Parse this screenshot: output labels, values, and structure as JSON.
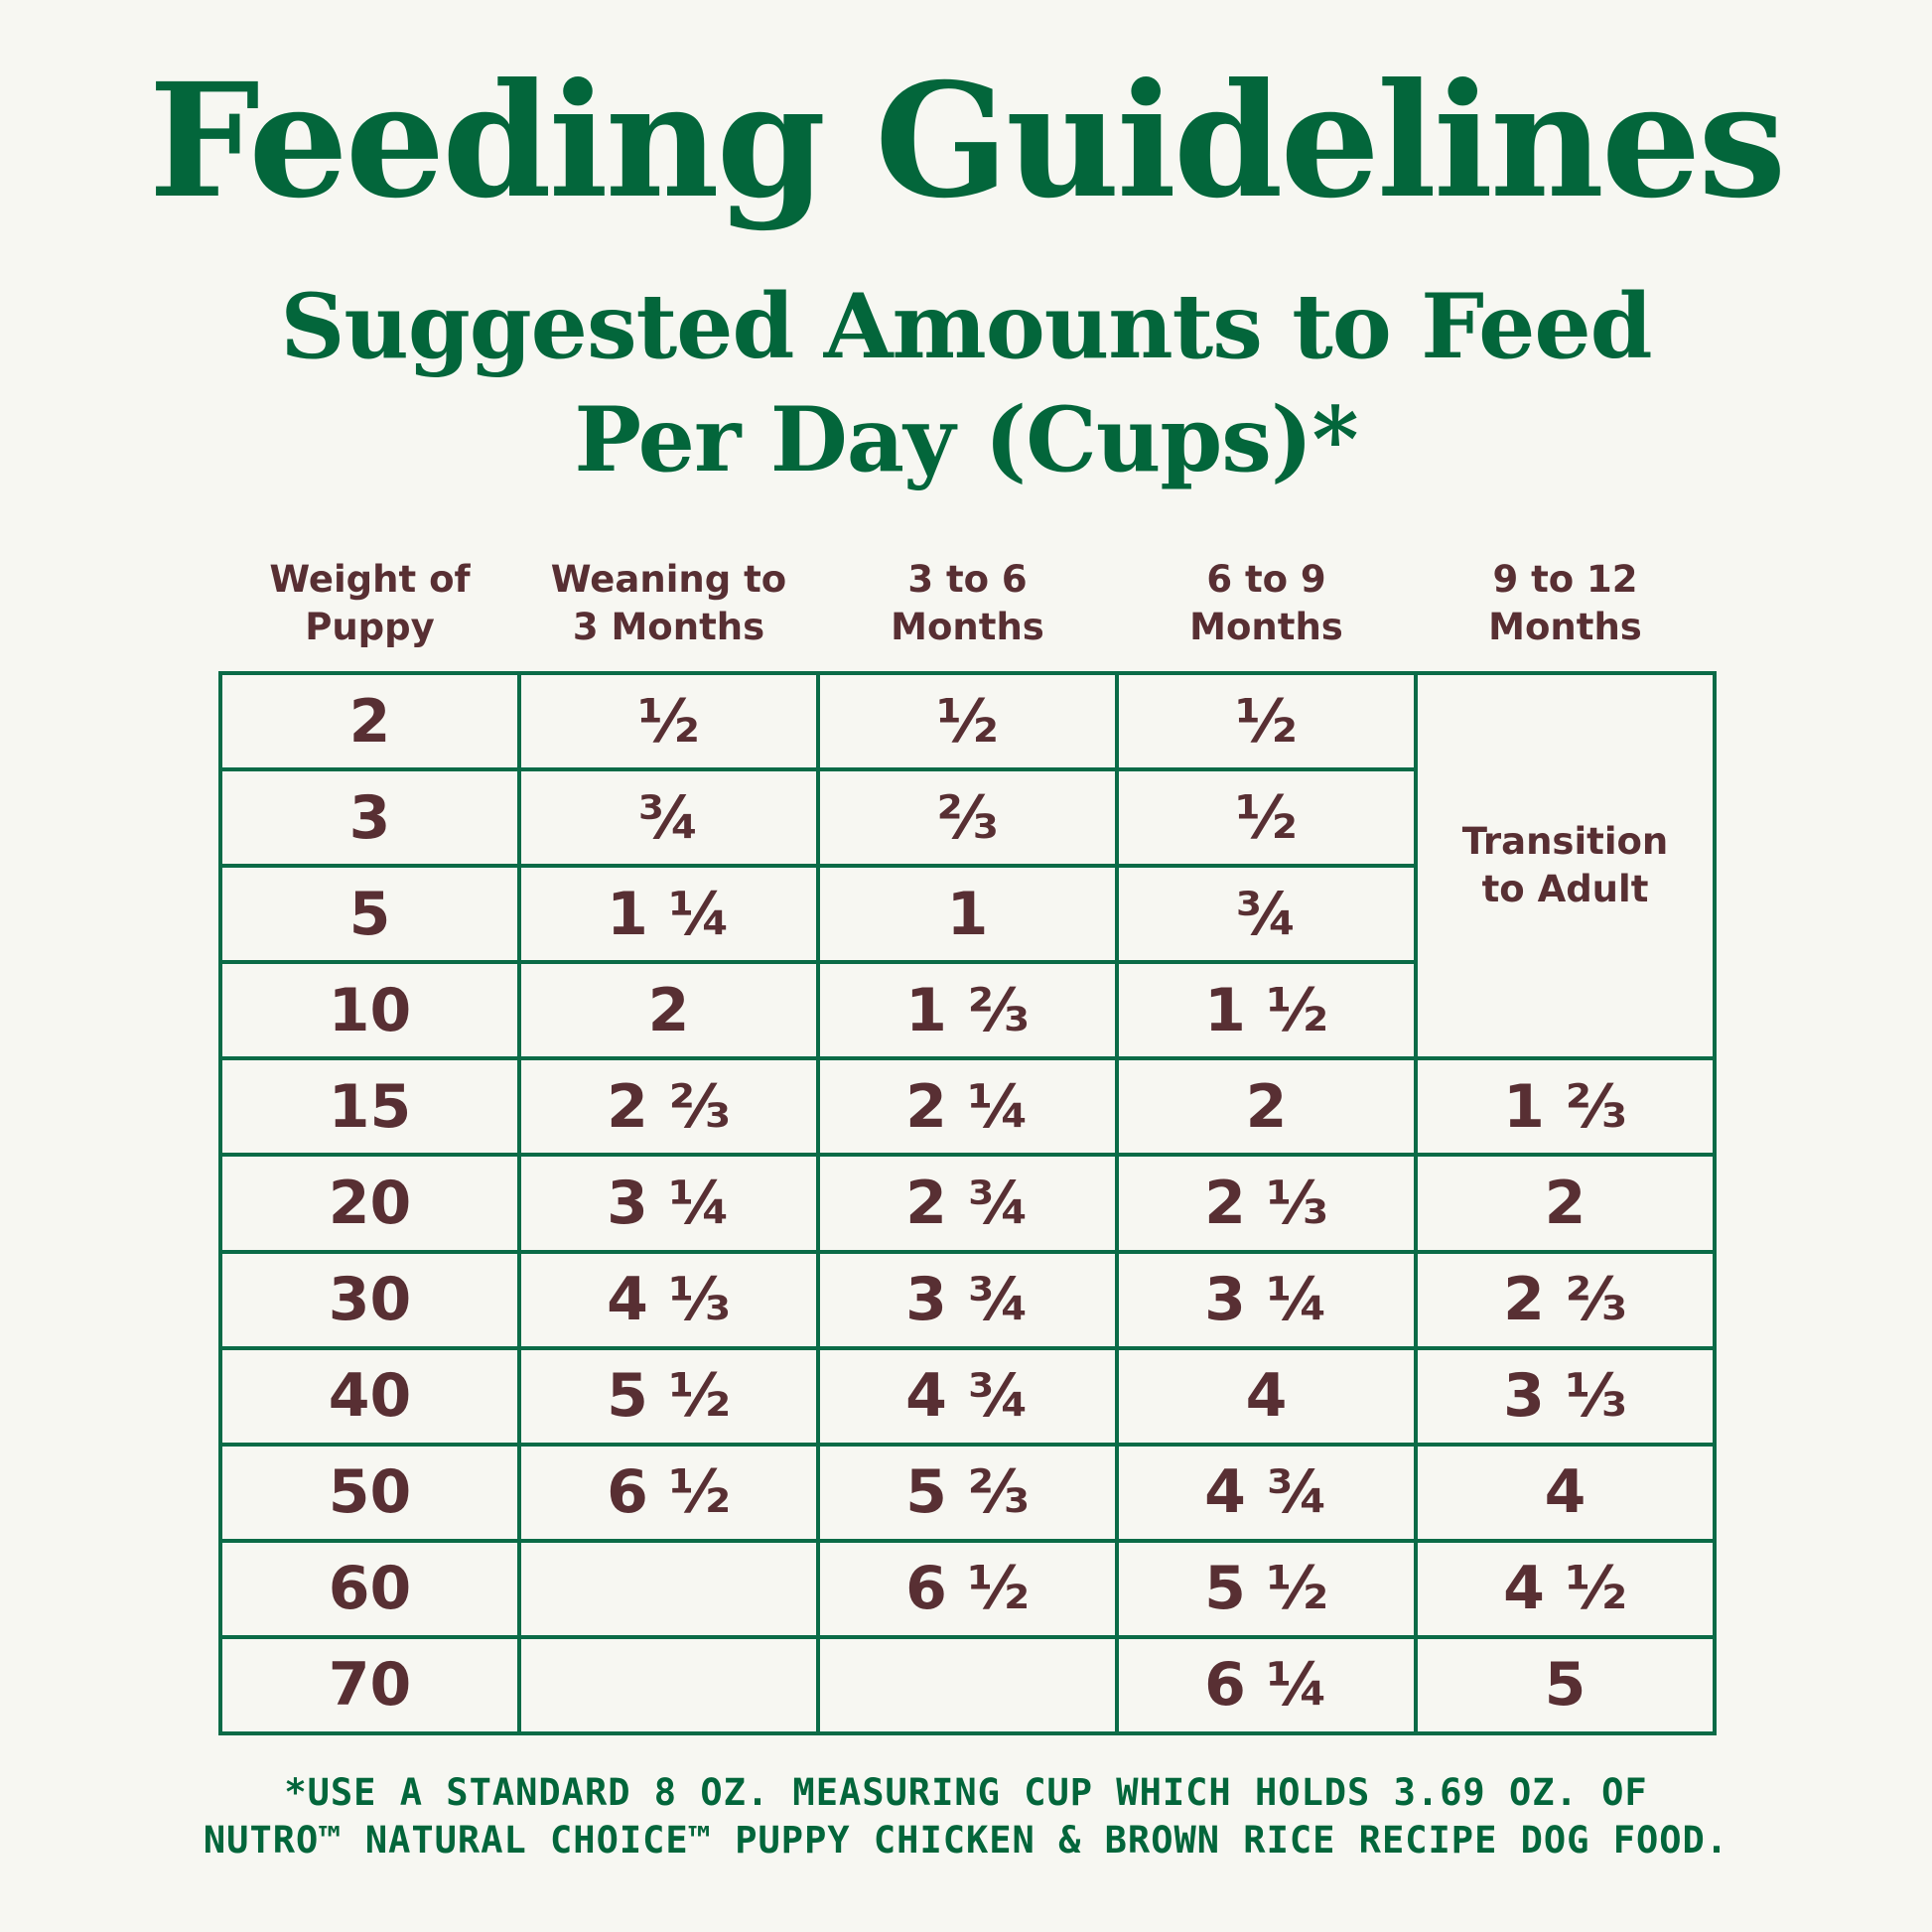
{
  "header": {
    "title": "Feeding Guidelines",
    "subtitle_line1": "Suggested Amounts to Feed",
    "subtitle_line2": "Per Day (Cups)*"
  },
  "table": {
    "columns": [
      "Weight of\nPuppy",
      "Weaning to\n3 Months",
      "3 to 6\nMonths",
      "6 to 9\nMonths",
      "9 to 12\nMonths"
    ],
    "rows": [
      [
        "2",
        "½",
        "½",
        "½",
        ""
      ],
      [
        "3",
        "¾",
        "⅔",
        "½",
        ""
      ],
      [
        "5",
        "1 ¼",
        "1",
        "¾",
        ""
      ],
      [
        "10",
        "2",
        "1 ⅔",
        "1 ½",
        ""
      ],
      [
        "15",
        "2 ⅔",
        "2 ¼",
        "2",
        "1 ⅔"
      ],
      [
        "20",
        "3 ¼",
        "2 ¾",
        "2 ⅓",
        "2"
      ],
      [
        "30",
        "4 ⅓",
        "3 ¾",
        "3 ¼",
        "2 ⅔"
      ],
      [
        "40",
        "5 ½",
        "4 ¾",
        "4",
        "3 ⅓"
      ],
      [
        "50",
        "6 ½",
        "5 ⅔",
        "4 ¾",
        "4"
      ],
      [
        "60",
        "",
        "6 ½",
        "5 ½",
        "4 ½"
      ],
      [
        "70",
        "",
        "",
        "6 ¼",
        "5"
      ]
    ],
    "merged_note": "Transition\nto Adult"
  },
  "footnote": {
    "line1": "*USE A STANDARD 8 OZ. MEASURING CUP WHICH HOLDS 3.69 OZ. OF",
    "line2": "NUTRO™ NATURAL CHOICE™ PUPPY CHICKEN & BROWN RICE RECIPE DOG FOOD."
  },
  "colors": {
    "background": "#f7f7f2",
    "title_green": "#03663b",
    "grid_green": "#0b6b47",
    "cell_text": "#582f33"
  }
}
